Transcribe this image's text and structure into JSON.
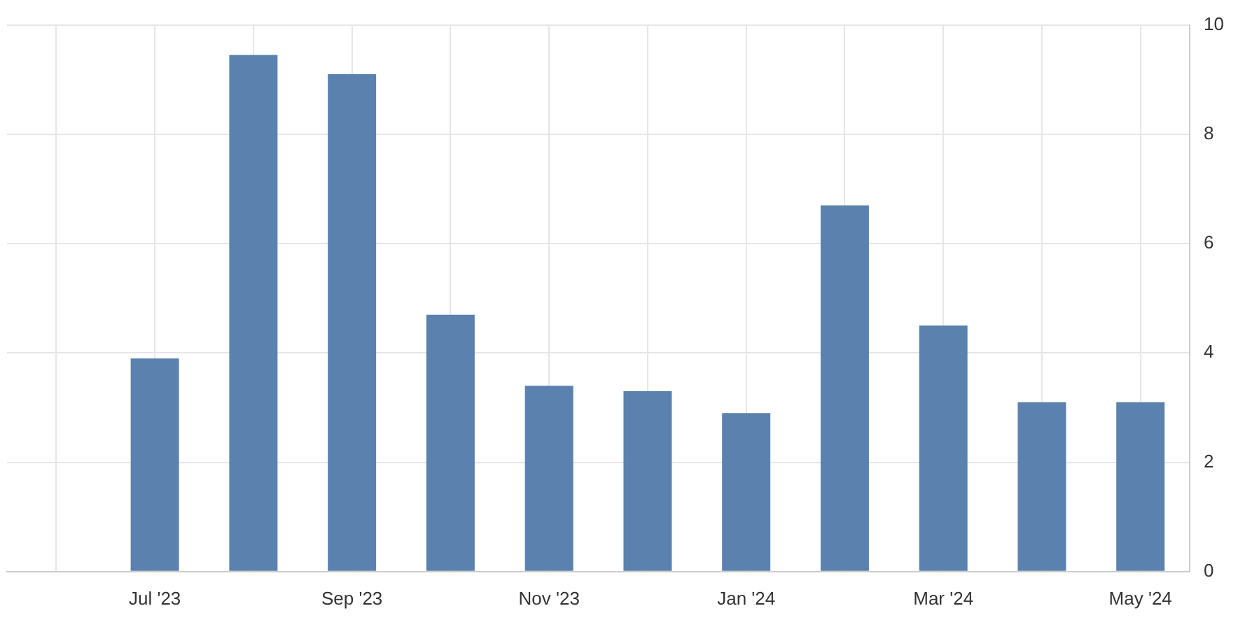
{
  "chart_data": {
    "type": "bar",
    "categories": [
      null,
      "Jul '23",
      null,
      "Sep '23",
      null,
      "Nov '23",
      null,
      "Jan '24",
      null,
      "Mar '24",
      null,
      "May '24"
    ],
    "values": [
      null,
      3.9,
      9.45,
      9.1,
      4.7,
      3.4,
      3.3,
      2.9,
      6.7,
      4.5,
      3.1,
      3.1
    ],
    "color": "#5b82ae",
    "ylim": [
      0,
      10
    ],
    "yticks": [
      0,
      2,
      4,
      6,
      8,
      10
    ],
    "grid": true,
    "legend": false
  }
}
